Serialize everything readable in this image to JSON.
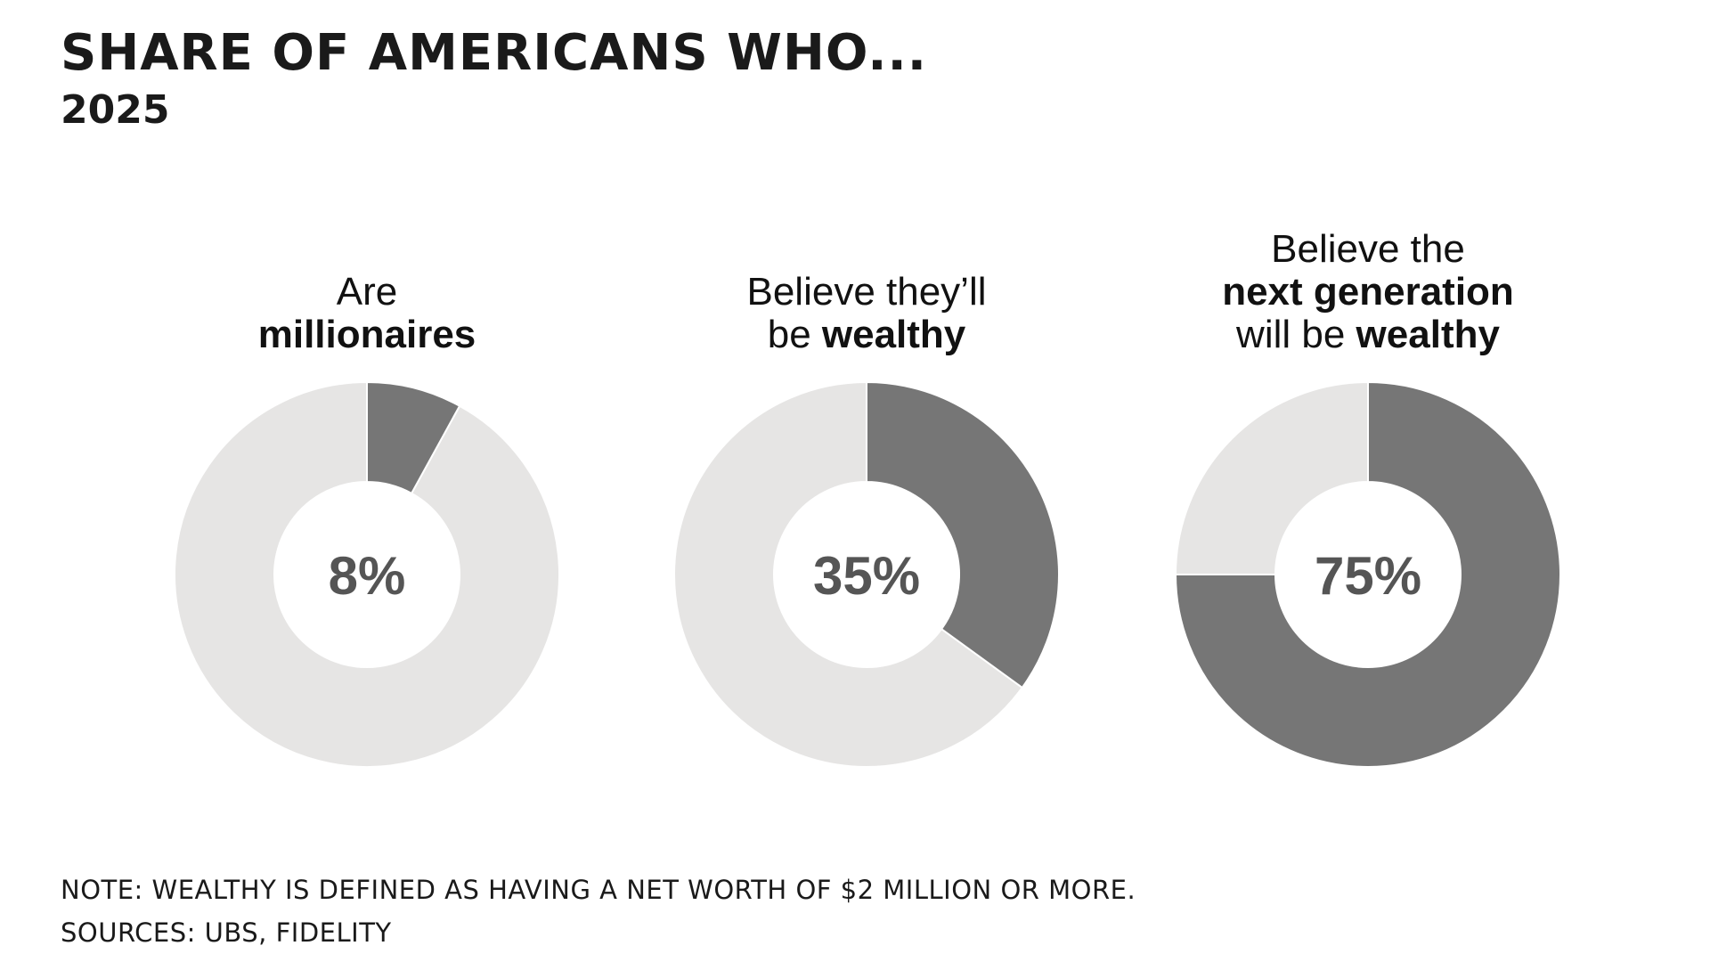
{
  "title": "Share of Americans who...",
  "subtitle": "2025",
  "note": "Note: Wealthy is defined as having a net worth of $2 million or more.",
  "sources": "Sources: UBS, Fidelity",
  "colors": {
    "filled": "#767676",
    "remainder": "#e6e5e4",
    "center_text": "#555555"
  },
  "chart_data": [
    {
      "type": "pie",
      "title_lines": [
        [
          {
            "text": "Are",
            "bold": false
          }
        ],
        [
          {
            "text": "millionaires",
            "bold": true
          }
        ]
      ],
      "value": 8,
      "center_label": "8%",
      "unit": "%"
    },
    {
      "type": "pie",
      "title_lines": [
        [
          {
            "text": "Believe they’ll",
            "bold": false
          }
        ],
        [
          {
            "text": "be ",
            "bold": false
          },
          {
            "text": "wealthy",
            "bold": true
          }
        ]
      ],
      "value": 35,
      "center_label": "35%",
      "unit": "%"
    },
    {
      "type": "pie",
      "title_lines": [
        [
          {
            "text": "Believe the",
            "bold": false
          }
        ],
        [
          {
            "text": "next generation",
            "bold": true
          }
        ],
        [
          {
            "text": "will be ",
            "bold": false
          },
          {
            "text": "wealthy",
            "bold": true
          }
        ]
      ],
      "value": 75,
      "center_label": "75%",
      "unit": "%"
    }
  ]
}
